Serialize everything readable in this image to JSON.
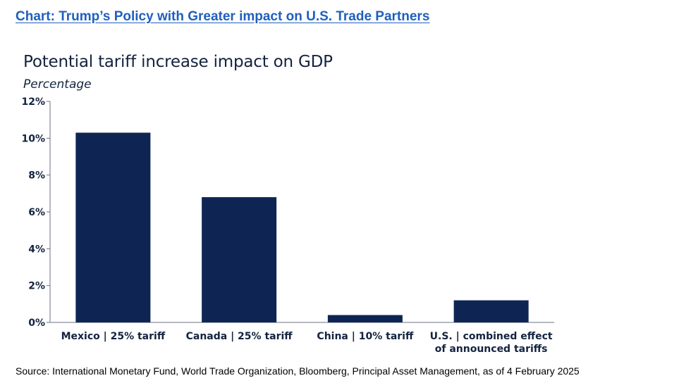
{
  "heading": "Chart: Trump’s Policy with Greater impact on U.S. Trade Partners",
  "source": "Source: International Monetary Fund, World Trade Organization, Bloomberg, Principal Asset Management, as of 4 February 2025",
  "colors": {
    "bar": "#0e2554",
    "heading": "#1f5fbf",
    "text": "#13233f"
  },
  "chart_data": {
    "type": "bar",
    "title": "Potential tariff increase impact on GDP",
    "ylabel": "Percentage",
    "xlabel": "",
    "categories": [
      [
        "Mexico | 25% tariff"
      ],
      [
        "Canada | 25% tariff"
      ],
      [
        "China | 10% tariff"
      ],
      [
        "U.S. | combined effect",
        "of announced tariffs"
      ]
    ],
    "values": [
      10.3,
      6.8,
      0.4,
      1.2
    ],
    "ylim": [
      0,
      12
    ],
    "yticks": [
      "0%",
      "2%",
      "4%",
      "6%",
      "8%",
      "10%",
      "12%"
    ],
    "grid": false,
    "legend": "none"
  }
}
